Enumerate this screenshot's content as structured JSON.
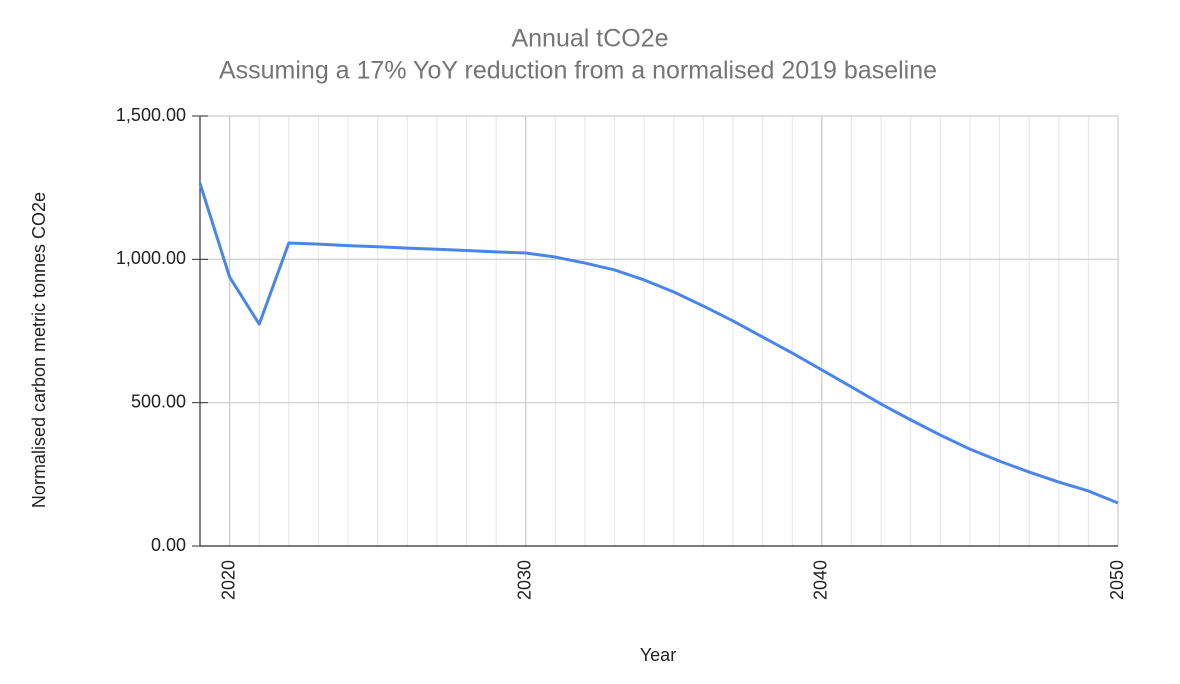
{
  "chart_data": {
    "type": "line",
    "title": "Annual tCO2e",
    "subtitle": "Assuming a 17% YoY reduction from a normalised 2019 baseline",
    "x_label": "Year",
    "y_label": "Normalised carbon metric tonnes CO2e",
    "x": [
      2019,
      2020,
      2021,
      2022,
      2023,
      2024,
      2025,
      2026,
      2027,
      2028,
      2029,
      2030,
      2031,
      2032,
      2033,
      2034,
      2035,
      2036,
      2037,
      2038,
      2039,
      2040,
      2041,
      2042,
      2043,
      2044,
      2045,
      2046,
      2047,
      2048,
      2049,
      2050
    ],
    "series": [
      {
        "name": "Annual tCO2e",
        "color": "#4a86e8",
        "values": [
          1265,
          938,
          774,
          1057,
          1053,
          1048,
          1044,
          1039,
          1035,
          1031,
          1026,
          1022,
          1008,
          987,
          963,
          928,
          886,
          837,
          785,
          729,
          673,
          614,
          555,
          495,
          440,
          387,
          338,
          296,
          258,
          223,
          192,
          150
        ]
      }
    ],
    "xlim": [
      2019,
      2050
    ],
    "xticks": [
      2020,
      2030,
      2040,
      2050
    ],
    "ylim": [
      0,
      1500
    ],
    "yticks": [
      {
        "value": 0,
        "label": "0.00"
      },
      {
        "value": 500,
        "label": "500.00"
      },
      {
        "value": 1000,
        "label": "1,000.00"
      },
      {
        "value": 1500,
        "label": "1,500.00"
      }
    ],
    "grid": true
  }
}
